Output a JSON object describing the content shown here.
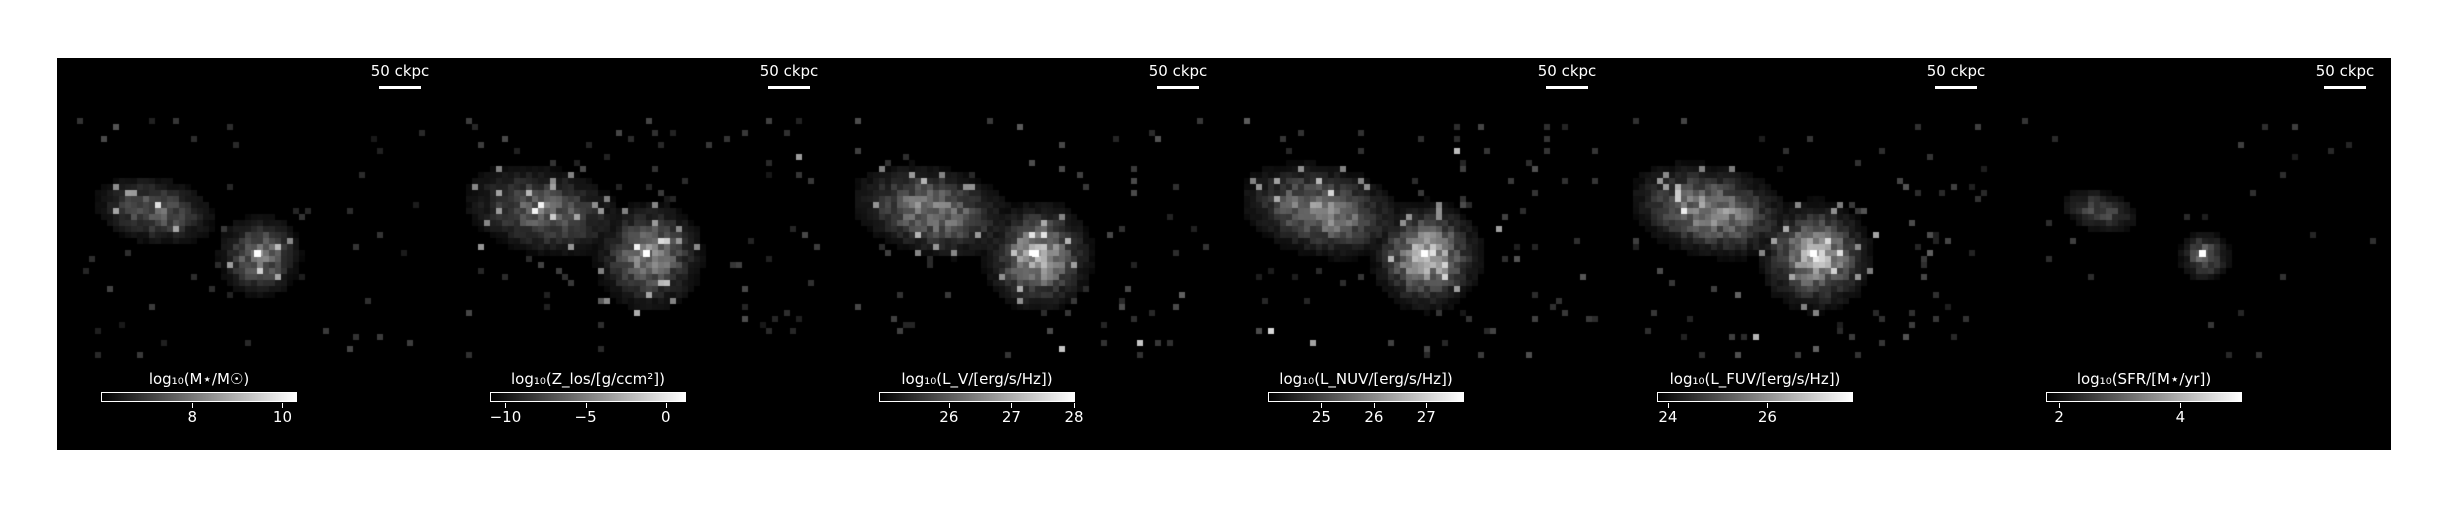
{
  "figure": {
    "panels": [
      {
        "id": "stellar-mass",
        "scale_label": "50 ckpc",
        "cbar_label": "log₁₀(M⋆/M☉)",
        "vmin": 6.0,
        "vmax": 10.3,
        "ticks": [
          8,
          10
        ],
        "tick_labels": [
          "8",
          "10"
        ],
        "brightness": 0.55,
        "spread": 0.6
      },
      {
        "id": "metallicity",
        "scale_label": "50 ckpc",
        "cbar_label": "log₁₀(Z_los/[g/ccm²])",
        "vmin": -10.9,
        "vmax": 1.2,
        "ticks": [
          -10,
          -5,
          0
        ],
        "tick_labels": [
          "−10",
          "−5",
          "0"
        ],
        "brightness": 0.6,
        "spread": 1.0
      },
      {
        "id": "luminosity-v",
        "scale_label": "50 ckpc",
        "cbar_label": "log₁₀(L_V/[erg/s/Hz])",
        "vmin": 24.9,
        "vmax": 28.0,
        "ticks": [
          26,
          27,
          28
        ],
        "tick_labels": [
          "26",
          "27",
          "28"
        ],
        "brightness": 0.75,
        "spread": 0.95
      },
      {
        "id": "luminosity-nuv",
        "scale_label": "50 ckpc",
        "cbar_label": "log₁₀(L_NUV/[erg/s/Hz])",
        "vmin": 24.0,
        "vmax": 27.7,
        "ticks": [
          25,
          26,
          27
        ],
        "tick_labels": [
          "25",
          "26",
          "27"
        ],
        "brightness": 0.8,
        "spread": 0.95
      },
      {
        "id": "luminosity-fuv",
        "scale_label": "50 ckpc",
        "cbar_label": "log₁₀(L_FUV/[erg/s/Hz])",
        "vmin": 23.8,
        "vmax": 27.7,
        "ticks": [
          24,
          26
        ],
        "tick_labels": [
          "24",
          "26"
        ],
        "brightness": 0.82,
        "spread": 0.95
      },
      {
        "id": "sfr",
        "scale_label": "50 ckpc",
        "cbar_label": "log₁₀(SFR/[M⋆/yr])",
        "vmin": 1.8,
        "vmax": 5.0,
        "ticks": [
          2,
          4
        ],
        "tick_labels": [
          "2",
          "4"
        ],
        "brightness": 0.45,
        "spread": 0.25
      }
    ]
  }
}
